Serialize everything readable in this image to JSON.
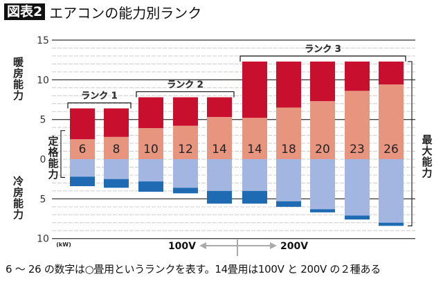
{
  "title": {
    "tag": "図表2",
    "text": "エアコンの能力別ランク"
  },
  "footnote": "6 ～ 26 の数字は○畳用というランクを表す。14畳用は100V と 200V の２種ある",
  "colors": {
    "heating_max": "#c8102e",
    "heating_rated": "#e89580",
    "cooling_rated": "#a3b6e2",
    "cooling_max": "#1e6bb3"
  },
  "labels": {
    "heating": [
      "暖",
      "房",
      "能",
      "力"
    ],
    "cooling": [
      "冷",
      "房",
      "能",
      "力"
    ],
    "rated": [
      "定",
      "格",
      "能",
      "力"
    ],
    "max": [
      "最",
      "大",
      "能",
      "力"
    ],
    "unit": "(kW)",
    "v100": "100V",
    "v200": "200V"
  },
  "ranks": [
    {
      "label": "ランク 1",
      "from": 0,
      "to": 1
    },
    {
      "label": "ランク 2",
      "from": 2,
      "to": 4
    },
    {
      "label": "ランク 3",
      "from": 5,
      "to": 9
    }
  ],
  "chart_data": {
    "type": "bar",
    "ylabel_top": "暖房能力",
    "ylabel_bottom": "冷房能力",
    "unit": "kW",
    "yticks_heating": [
      0,
      5,
      10,
      15
    ],
    "yticks_cooling": [
      5,
      10
    ],
    "ylim": [
      -10,
      15
    ],
    "grid": true,
    "categories": [
      "6",
      "8",
      "10",
      "12",
      "14",
      "14",
      "18",
      "20",
      "23",
      "26"
    ],
    "voltage": [
      "100V",
      "100V",
      "100V",
      "100V",
      "100V",
      "200V",
      "200V",
      "200V",
      "200V",
      "200V"
    ],
    "series": [
      {
        "name": "暖房 定格能力",
        "values": [
          2.5,
          2.8,
          3.9,
          4.2,
          5.3,
          5.2,
          6.5,
          7.3,
          8.6,
          9.4
        ]
      },
      {
        "name": "暖房 最大能力",
        "values": [
          6.4,
          6.4,
          7.8,
          7.8,
          7.8,
          12.3,
          12.3,
          12.3,
          12.3,
          12.3
        ]
      },
      {
        "name": "冷房 定格能力",
        "values": [
          2.2,
          2.5,
          2.8,
          3.6,
          4.0,
          4.0,
          5.3,
          6.3,
          7.1,
          8.0
        ]
      },
      {
        "name": "冷房 最大能力",
        "values": [
          3.4,
          3.6,
          4.1,
          4.3,
          5.6,
          5.6,
          6.0,
          6.7,
          7.6,
          8.4
        ]
      }
    ]
  }
}
